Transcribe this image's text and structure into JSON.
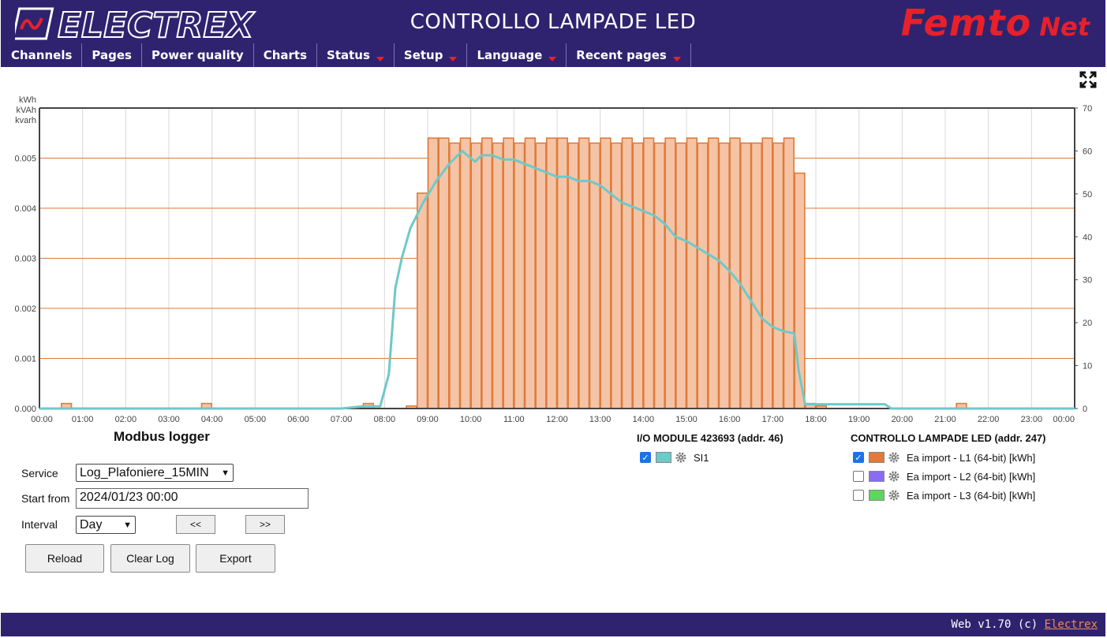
{
  "header": {
    "logo_text": "ELECTREX",
    "title": "CONTROLLO LAMPADE LED",
    "brand_main": "Femto",
    "brand_sub": "Net"
  },
  "menu": [
    {
      "label": "Channels",
      "dropdown": false
    },
    {
      "label": "Pages",
      "dropdown": false
    },
    {
      "label": "Power quality",
      "dropdown": false
    },
    {
      "label": "Charts",
      "dropdown": false
    },
    {
      "label": "Status",
      "dropdown": true
    },
    {
      "label": "Setup",
      "dropdown": true
    },
    {
      "label": "Language",
      "dropdown": true
    },
    {
      "label": "Recent pages",
      "dropdown": true
    }
  ],
  "chart_units": [
    "kWh",
    "kVAh",
    "kvarh"
  ],
  "chart_data": {
    "type": "bar",
    "x_ticks": [
      "00:00",
      "01:00",
      "02:00",
      "03:00",
      "04:00",
      "05:00",
      "06:00",
      "07:00",
      "08:00",
      "09:00",
      "10:00",
      "11:00",
      "12:00",
      "13:00",
      "14:00",
      "15:00",
      "16:00",
      "17:00",
      "18:00",
      "19:00",
      "20:00",
      "21:00",
      "22:00",
      "23:00",
      "00:00"
    ],
    "y_left_ticks": [
      "0.000",
      "0.001",
      "0.002",
      "0.003",
      "0.004",
      "0.005"
    ],
    "y_left_range": [
      0,
      0.006
    ],
    "y_right_ticks": [
      "0",
      "10",
      "20",
      "30",
      "40",
      "50",
      "60",
      "70"
    ],
    "y_right_range": [
      0,
      70
    ],
    "bar_series": {
      "name": "Ea import - L1 (64-bit) [kWh]",
      "color": "#e07a3a",
      "interval_minutes": 15,
      "values": [
        0,
        0,
        0.0001,
        0,
        0,
        0,
        0,
        0,
        0,
        0,
        0,
        0,
        0,
        0,
        0,
        0.0001,
        0,
        0,
        0,
        0,
        0,
        0,
        0,
        0,
        0,
        0,
        0,
        0,
        0,
        0,
        0.0001,
        0,
        0,
        0,
        5e-05,
        0.0043,
        0.0054,
        0.0054,
        0.0053,
        0.0054,
        0.0053,
        0.0054,
        0.0053,
        0.0054,
        0.0053,
        0.0054,
        0.0053,
        0.0054,
        0.0054,
        0.0053,
        0.0054,
        0.0053,
        0.0054,
        0.0053,
        0.0054,
        0.0053,
        0.0054,
        0.0053,
        0.0054,
        0.0053,
        0.0054,
        0.0053,
        0.0054,
        0.0053,
        0.0054,
        0.0053,
        0.0053,
        0.0054,
        0.0053,
        0.0054,
        0.0047,
        0.0001,
        5e-05,
        0,
        0,
        0,
        0,
        0,
        0,
        0,
        0,
        0,
        0,
        0,
        0,
        0.0001,
        0,
        0,
        0,
        0,
        0,
        0,
        0,
        0,
        0,
        0
      ]
    },
    "line_series": {
      "name": "SI1",
      "color": "#6ec9c9",
      "x_hours": [
        0,
        7.0,
        7.5,
        7.9,
        8.1,
        8.25,
        8.4,
        8.6,
        8.9,
        9.2,
        9.5,
        9.8,
        10.1,
        10.25,
        10.5,
        10.75,
        11.0,
        11.25,
        11.5,
        11.75,
        12.0,
        12.25,
        12.5,
        12.75,
        13.0,
        13.25,
        13.5,
        13.75,
        14.0,
        14.25,
        14.5,
        14.75,
        15.0,
        15.25,
        15.5,
        15.75,
        16.0,
        16.25,
        16.5,
        16.75,
        17.0,
        17.25,
        17.5,
        17.6,
        17.75,
        18.25,
        18.75,
        19.25,
        19.6,
        19.75,
        20.0,
        24.0
      ],
      "values": [
        0,
        0,
        0.5,
        0.5,
        8,
        28,
        35,
        42,
        48,
        53,
        57,
        60,
        57.5,
        59,
        59,
        58,
        58,
        57,
        56,
        55,
        54,
        54,
        53,
        53,
        52,
        50,
        48,
        47,
        46,
        45,
        43,
        40,
        39,
        37.5,
        36,
        34.5,
        32,
        29,
        25,
        21,
        19,
        18,
        17.5,
        9,
        1,
        1,
        1,
        1,
        1,
        0,
        0,
        0
      ]
    }
  },
  "logger": {
    "title": "Modbus logger",
    "service_label": "Service",
    "service_value": "Log_Plafoniere_15MIN",
    "start_label": "Start from",
    "start_value": "2024/01/23 00:00",
    "interval_label": "Interval",
    "interval_value": "Day",
    "prev_label": "<<",
    "next_label": ">>",
    "reload_label": "Reload",
    "clear_label": "Clear Log",
    "export_label": "Export"
  },
  "io_module": {
    "title": "I/O MODULE 423693 (addr. 46)",
    "channels": [
      {
        "label": "SI1",
        "checked": true,
        "color": "#6ec9c9"
      }
    ]
  },
  "lamp_module": {
    "title": "CONTROLLO LAMPADE LED (addr. 247)",
    "channels": [
      {
        "label": "Ea import - L1 (64-bit) [kWh]",
        "checked": true,
        "color": "#e07a3a"
      },
      {
        "label": "Ea import - L2 (64-bit) [kWh]",
        "checked": false,
        "color": "#8a6cf0"
      },
      {
        "label": "Ea import - L3 (64-bit) [kWh]",
        "checked": false,
        "color": "#5cd65c"
      }
    ]
  },
  "footer": {
    "text": "Web v1.70 (c)",
    "link": "Electrex"
  }
}
